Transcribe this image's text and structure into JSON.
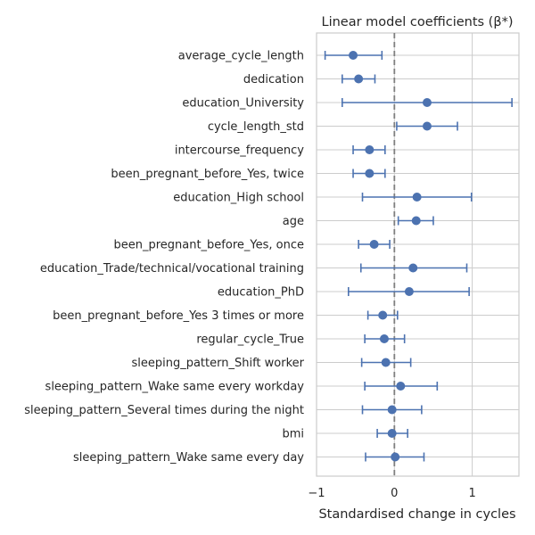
{
  "chart_data": {
    "type": "errorbar",
    "title": "Linear model coefficients (β*)",
    "xlabel": "Standardised change in cycles",
    "ylabel": "",
    "xlim": [
      -1,
      1.6
    ],
    "xticks": [
      -1,
      0,
      1
    ],
    "xtick_labels": [
      "−1",
      "0",
      "1"
    ],
    "grid": true,
    "reference_line": 0,
    "series": [
      {
        "color": "#4c72b0",
        "points": [
          {
            "label": "average_cycle_length",
            "value": -0.53,
            "lower": -0.89,
            "upper": -0.16
          },
          {
            "label": "dedication",
            "value": -0.46,
            "lower": -0.67,
            "upper": -0.25
          },
          {
            "label": "education_University",
            "value": 0.42,
            "lower": -0.67,
            "upper": 1.51
          },
          {
            "label": "cycle_length_std",
            "value": 0.42,
            "lower": 0.03,
            "upper": 0.81
          },
          {
            "label": "intercourse_frequency",
            "value": -0.32,
            "lower": -0.53,
            "upper": -0.12
          },
          {
            "label": "been_pregnant_before_Yes, twice",
            "value": -0.32,
            "lower": -0.53,
            "upper": -0.12
          },
          {
            "label": "education_High school",
            "value": 0.29,
            "lower": -0.41,
            "upper": 0.99
          },
          {
            "label": "age",
            "value": 0.28,
            "lower": 0.05,
            "upper": 0.5
          },
          {
            "label": "been_pregnant_before_Yes, once",
            "value": -0.26,
            "lower": -0.46,
            "upper": -0.06
          },
          {
            "label": "education_Trade/technical/vocational training",
            "value": 0.24,
            "lower": -0.43,
            "upper": 0.93
          },
          {
            "label": "education_PhD",
            "value": 0.19,
            "lower": -0.59,
            "upper": 0.96
          },
          {
            "label": "been_pregnant_before_Yes 3 times or more",
            "value": -0.15,
            "lower": -0.34,
            "upper": 0.04
          },
          {
            "label": "regular_cycle_True",
            "value": -0.13,
            "lower": -0.38,
            "upper": 0.13
          },
          {
            "label": "sleeping_pattern_Shift worker",
            "value": -0.11,
            "lower": -0.42,
            "upper": 0.21
          },
          {
            "label": "sleeping_pattern_Wake same every workday",
            "value": 0.08,
            "lower": -0.38,
            "upper": 0.55
          },
          {
            "label": "sleeping_pattern_Several times during the night",
            "value": -0.03,
            "lower": -0.41,
            "upper": 0.35
          },
          {
            "label": "bmi",
            "value": -0.03,
            "lower": -0.22,
            "upper": 0.17
          },
          {
            "label": "sleeping_pattern_Wake same every day",
            "value": 0.01,
            "lower": -0.37,
            "upper": 0.38
          }
        ]
      }
    ]
  }
}
